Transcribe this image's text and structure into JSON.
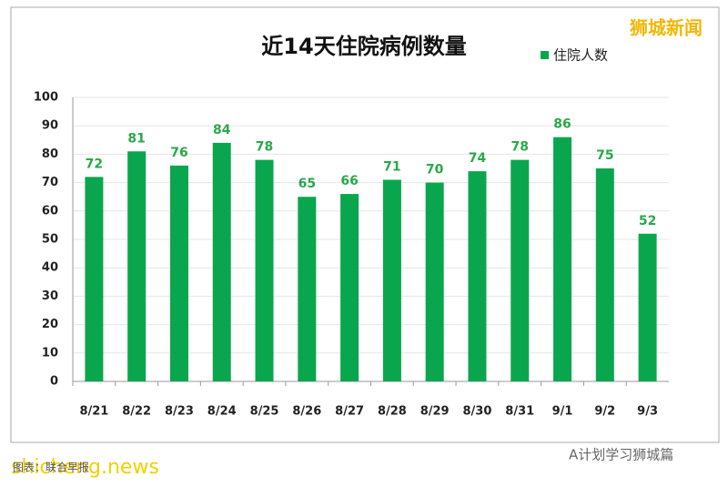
{
  "chart_data": {
    "type": "bar",
    "title": "近14天住院病例数量",
    "series": [
      {
        "name": "住院人数",
        "color": "#0aa64e",
        "values": [
          72,
          81,
          76,
          84,
          78,
          65,
          66,
          71,
          70,
          74,
          78,
          86,
          75,
          52
        ]
      }
    ],
    "categories": [
      "8/21",
      "8/22",
      "8/23",
      "8/24",
      "8/25",
      "8/26",
      "8/27",
      "8/28",
      "8/29",
      "8/30",
      "8/31",
      "9/1",
      "9/2",
      "9/3"
    ],
    "ylim": [
      0,
      100
    ],
    "yticks": [
      0,
      10,
      20,
      30,
      40,
      50,
      60,
      70,
      80,
      90,
      100
    ],
    "grid": true,
    "legend": "top-right"
  },
  "watermarks": {
    "top_right": "狮城新闻",
    "bottom_left": "shicheng.news",
    "bottom_right": "A计划学习狮城篇",
    "source": "图表：联合早报"
  }
}
